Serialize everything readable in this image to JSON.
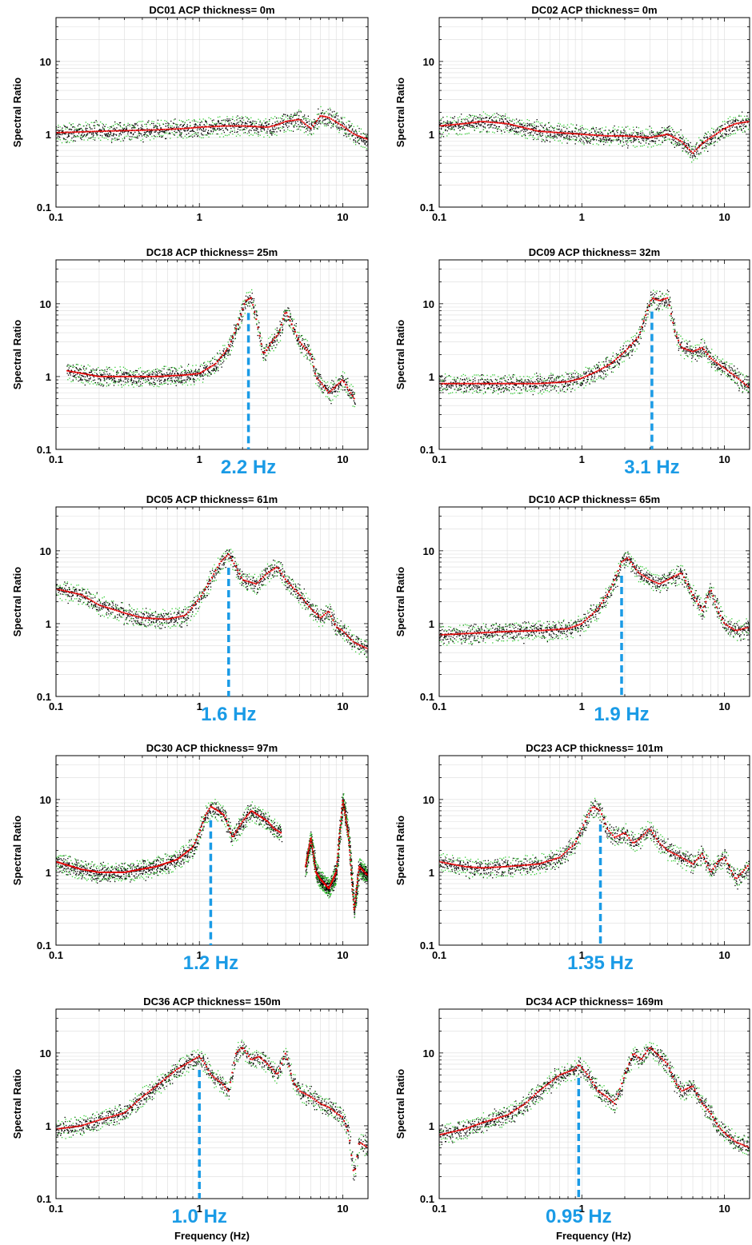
{
  "figure": {
    "y_axis_label": "Spectral Ratio",
    "x_axis_label": "Frequency (Hz)"
  },
  "colors": {
    "red_series": "#e60000",
    "green_series": "#33cc33",
    "black_points": "#000000",
    "peak_marker": "#1a9be6",
    "grid": "#dcdcdc"
  },
  "chart_data": [
    {
      "type": "scatter",
      "title": "DC01  ACP thickness= 0m",
      "x_scale": "log",
      "y_scale": "log",
      "xlim": [
        0.1,
        15
      ],
      "ylim": [
        0.1,
        40
      ],
      "x_ticks": [
        "0.1",
        "1",
        "10"
      ],
      "y_ticks": [
        "0.1",
        "1",
        "10"
      ],
      "grid": true,
      "series": [
        {
          "x": [
            0.1,
            0.2,
            0.3,
            0.5,
            0.8,
            1,
            1.5,
            2,
            3,
            3.5,
            4,
            5,
            6,
            7,
            8,
            10,
            12,
            15
          ],
          "y": [
            1.05,
            1.1,
            1.12,
            1.15,
            1.2,
            1.25,
            1.3,
            1.3,
            1.25,
            1.35,
            1.5,
            1.6,
            1.2,
            1.8,
            1.7,
            1.3,
            1.0,
            0.85
          ]
        }
      ],
      "peak": null
    },
    {
      "type": "scatter",
      "title": "DC02  ACP thickness= 0m",
      "x_scale": "log",
      "y_scale": "log",
      "xlim": [
        0.1,
        15
      ],
      "ylim": [
        0.1,
        40
      ],
      "x_ticks": [
        "0.1",
        "1",
        "10"
      ],
      "y_ticks": [
        "0.1",
        "1",
        "10"
      ],
      "grid": true,
      "series": [
        {
          "x": [
            0.1,
            0.15,
            0.2,
            0.3,
            0.5,
            1,
            1.5,
            2,
            3,
            4,
            5,
            6,
            7,
            8,
            10,
            12,
            15
          ],
          "y": [
            1.3,
            1.4,
            1.5,
            1.4,
            1.1,
            1.0,
            0.95,
            0.95,
            0.9,
            1.0,
            0.8,
            0.55,
            0.75,
            0.9,
            1.2,
            1.4,
            1.5
          ]
        }
      ],
      "peak": null
    },
    {
      "type": "scatter",
      "title": "DC18  ACP thickness= 25m",
      "x_scale": "log",
      "y_scale": "log",
      "xlim": [
        0.1,
        15
      ],
      "ylim": [
        0.1,
        40
      ],
      "x_ticks": [
        "0.1",
        "1",
        "10"
      ],
      "y_ticks": [
        "0.1",
        "1",
        "10"
      ],
      "grid": true,
      "series": [
        {
          "x": [
            0.12,
            0.2,
            0.3,
            0.5,
            0.8,
            1,
            1.3,
            1.6,
            1.9,
            2.1,
            2.3,
            2.5,
            2.8,
            3.2,
            3.6,
            4,
            5,
            6,
            6.5,
            8,
            10,
            12
          ],
          "y": [
            1.2,
            1.0,
            1.0,
            1.0,
            1.05,
            1.1,
            1.5,
            2.5,
            6,
            11,
            12,
            6,
            2,
            3,
            4,
            8,
            3,
            2,
            1,
            0.6,
            0.9,
            0.5
          ]
        }
      ],
      "peak": {
        "frequency": 2.2,
        "label": "2.2 Hz"
      }
    },
    {
      "type": "scatter",
      "title": "DC09  ACP thickness= 32m",
      "x_scale": "log",
      "y_scale": "log",
      "xlim": [
        0.1,
        15
      ],
      "ylim": [
        0.1,
        40
      ],
      "x_ticks": [
        "0.1",
        "1",
        "10"
      ],
      "y_ticks": [
        "0.1",
        "1",
        "10"
      ],
      "grid": true,
      "series": [
        {
          "x": [
            0.1,
            0.2,
            0.3,
            0.5,
            0.8,
            1,
            1.3,
            1.6,
            2,
            2.5,
            2.8,
            3.1,
            3.5,
            4,
            4.5,
            5,
            6,
            7,
            8,
            9,
            10,
            12,
            15
          ],
          "y": [
            0.8,
            0.8,
            0.8,
            0.8,
            0.85,
            0.95,
            1.2,
            1.5,
            2.2,
            3.5,
            7,
            12,
            11,
            12,
            4,
            2.5,
            2.2,
            2.5,
            1.8,
            1.5,
            1.3,
            1.0,
            0.7
          ]
        }
      ],
      "peak": {
        "frequency": 3.1,
        "label": "3.1 Hz"
      }
    },
    {
      "type": "scatter",
      "title": "DC05  ACP thickness= 61m",
      "x_scale": "log",
      "y_scale": "log",
      "xlim": [
        0.1,
        15
      ],
      "ylim": [
        0.1,
        40
      ],
      "x_ticks": [
        "0.1",
        "1",
        "10"
      ],
      "y_ticks": [
        "0.1",
        "1",
        "10"
      ],
      "grid": true,
      "series": [
        {
          "x": [
            0.1,
            0.15,
            0.2,
            0.3,
            0.4,
            0.6,
            0.8,
            1,
            1.2,
            1.4,
            1.6,
            1.8,
            2,
            2.5,
            3,
            3.5,
            4,
            5,
            6,
            7,
            8,
            9,
            10,
            12,
            15
          ],
          "y": [
            3,
            2.5,
            1.8,
            1.4,
            1.2,
            1.15,
            1.3,
            2.2,
            4,
            7,
            9,
            6,
            4,
            3.5,
            5,
            6,
            4,
            2.5,
            1.6,
            1.2,
            1.5,
            0.9,
            0.8,
            0.55,
            0.45
          ]
        }
      ],
      "peak": {
        "frequency": 1.6,
        "label": "1.6 Hz"
      }
    },
    {
      "type": "scatter",
      "title": "DC10  ACP thickness= 65m",
      "x_scale": "log",
      "y_scale": "log",
      "xlim": [
        0.1,
        15
      ],
      "ylim": [
        0.1,
        40
      ],
      "x_ticks": [
        "0.1",
        "1",
        "10"
      ],
      "y_ticks": [
        "0.1",
        "1",
        "10"
      ],
      "grid": true,
      "series": [
        {
          "x": [
            0.1,
            0.2,
            0.3,
            0.5,
            0.8,
            1,
            1.3,
            1.6,
            1.9,
            2.1,
            2.5,
            3,
            3.5,
            4,
            5,
            6,
            7,
            8,
            9,
            10,
            12,
            15
          ],
          "y": [
            0.7,
            0.75,
            0.78,
            0.8,
            0.85,
            1.0,
            1.6,
            3,
            7,
            8,
            5,
            4,
            3.5,
            4,
            5,
            2.5,
            1.5,
            3,
            1.5,
            1.0,
            0.8,
            0.9
          ]
        }
      ],
      "peak": {
        "frequency": 1.9,
        "label": "1.9 Hz"
      }
    },
    {
      "type": "scatter",
      "title": "DC30  ACP thickness= 97m",
      "x_scale": "log",
      "y_scale": "log",
      "xlim": [
        0.1,
        15
      ],
      "ylim": [
        0.1,
        40
      ],
      "x_ticks": [
        "0.1",
        "1",
        "10"
      ],
      "y_ticks": [
        "0.1",
        "1",
        "10"
      ],
      "grid": true,
      "series": [
        {
          "x": [
            0.1,
            0.15,
            0.2,
            0.3,
            0.5,
            0.7,
            0.9,
            1,
            1.1,
            1.2,
            1.35,
            1.5,
            1.7,
            2,
            2.3,
            2.6,
            3,
            3.3,
            3.7
          ],
          "y": [
            1.4,
            1.1,
            1.0,
            1.0,
            1.2,
            1.5,
            2.2,
            3.5,
            6,
            8,
            7,
            6,
            3,
            5,
            7,
            6,
            5,
            4,
            3.5
          ]
        },
        {
          "x": [
            5.5,
            6,
            6.5,
            7,
            8,
            9,
            10,
            11,
            12,
            13,
            15
          ],
          "y": [
            1.2,
            3,
            1.0,
            0.8,
            0.6,
            1.0,
            10,
            3,
            0.3,
            1.2,
            0.9
          ]
        }
      ],
      "peak": {
        "frequency": 1.2,
        "label": "1.2 Hz"
      }
    },
    {
      "type": "scatter",
      "title": "DC23  ACP thickness= 101m",
      "x_scale": "log",
      "y_scale": "log",
      "xlim": [
        0.1,
        15
      ],
      "ylim": [
        0.1,
        40
      ],
      "x_ticks": [
        "0.1",
        "1",
        "10"
      ],
      "y_ticks": [
        "0.1",
        "1",
        "10"
      ],
      "grid": true,
      "series": [
        {
          "x": [
            0.1,
            0.15,
            0.2,
            0.3,
            0.5,
            0.7,
            0.9,
            1,
            1.1,
            1.2,
            1.35,
            1.5,
            1.7,
            2,
            2.3,
            2.6,
            3,
            3.5,
            4,
            5,
            6,
            7,
            8,
            9,
            10,
            12,
            15
          ],
          "y": [
            1.4,
            1.2,
            1.15,
            1.2,
            1.3,
            1.6,
            2.5,
            4,
            6,
            8,
            7,
            4,
            3,
            3.5,
            2.5,
            3,
            4,
            2.5,
            2,
            1.6,
            1.3,
            1.8,
            1.0,
            1.4,
            1.6,
            0.8,
            1.3
          ]
        }
      ],
      "peak": {
        "frequency": 1.35,
        "label": "1.35 Hz"
      }
    },
    {
      "type": "scatter",
      "title": "DC36  ACP thickness= 150m",
      "x_scale": "log",
      "y_scale": "log",
      "xlim": [
        0.1,
        15
      ],
      "ylim": [
        0.1,
        40
      ],
      "x_ticks": [
        "0.1",
        "1",
        "10"
      ],
      "y_ticks": [
        "0.1",
        "1",
        "10"
      ],
      "grid": true,
      "series": [
        {
          "x": [
            0.1,
            0.15,
            0.2,
            0.3,
            0.4,
            0.5,
            0.7,
            0.9,
            1,
            1.1,
            1.2,
            1.4,
            1.6,
            1.8,
            2,
            2.3,
            2.6,
            3,
            3.5,
            4,
            4.5,
            5,
            6,
            7,
            8,
            9,
            10,
            11,
            12,
            13,
            15
          ],
          "y": [
            0.9,
            1.0,
            1.2,
            1.5,
            2.5,
            3.5,
            6,
            8,
            9,
            7,
            5,
            4,
            3,
            10,
            12,
            8,
            9,
            7,
            5,
            10,
            4,
            3,
            2.5,
            2,
            1.8,
            1.5,
            1.3,
            0.8,
            0.2,
            0.6,
            0.5
          ]
        }
      ],
      "peak": {
        "frequency": 1.0,
        "label": "1.0 Hz"
      }
    },
    {
      "type": "scatter",
      "title": "DC34  ACP thickness= 169m",
      "x_scale": "log",
      "y_scale": "log",
      "xlim": [
        0.1,
        15
      ],
      "ylim": [
        0.1,
        40
      ],
      "x_ticks": [
        "0.1",
        "1",
        "10"
      ],
      "y_ticks": [
        "0.1",
        "1",
        "10"
      ],
      "grid": true,
      "series": [
        {
          "x": [
            0.1,
            0.15,
            0.2,
            0.3,
            0.4,
            0.5,
            0.7,
            0.9,
            0.95,
            1.1,
            1.3,
            1.5,
            1.7,
            2,
            2.3,
            2.6,
            3,
            3.5,
            4,
            4.5,
            5,
            6,
            7,
            8,
            9,
            10,
            12,
            15
          ],
          "y": [
            0.75,
            0.9,
            1.1,
            1.4,
            2,
            3,
            5,
            6,
            7,
            5,
            3,
            2.5,
            2,
            5,
            10,
            8,
            12,
            9,
            7,
            4,
            3,
            3.5,
            2,
            1.5,
            1.0,
            0.8,
            0.6,
            0.5
          ]
        }
      ],
      "peak": {
        "frequency": 0.95,
        "label": "0.95 Hz"
      }
    }
  ]
}
